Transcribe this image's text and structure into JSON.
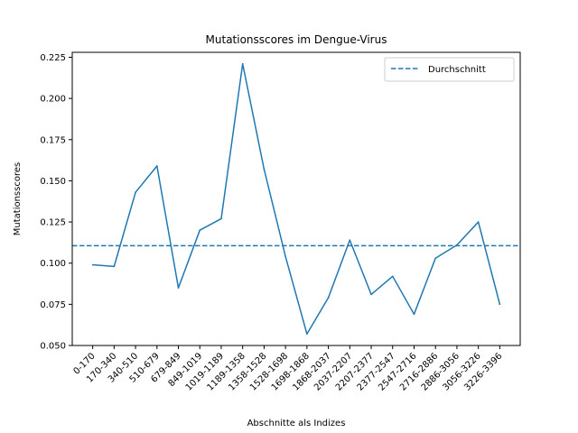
{
  "chart_data": {
    "type": "line",
    "title": "Mutationsscores im Dengue-Virus",
    "xlabel": "Abschnitte als Indizes",
    "ylabel": "Mutationsscores",
    "ylim": [
      0.05,
      0.228
    ],
    "yticks": [
      "0.050",
      "0.075",
      "0.100",
      "0.125",
      "0.150",
      "0.175",
      "0.200",
      "0.225"
    ],
    "grid": false,
    "legend_position": "top-right",
    "categories": [
      "0-170",
      "170-340",
      "340-510",
      "510-679",
      "679-849",
      "849-1019",
      "1019-1189",
      "1189-1358",
      "1358-1528",
      "1528-1698",
      "1698-1868",
      "1868-2037",
      "2037-2207",
      "2207-2377",
      "2377-2547",
      "2547-2716",
      "2716-2886",
      "2886-3056",
      "3056-3226",
      "3226-3396"
    ],
    "series": [
      {
        "values": [
          0.099,
          0.098,
          0.143,
          0.159,
          0.085,
          0.12,
          0.127,
          0.221,
          0.157,
          0.104,
          0.057,
          0.079,
          0.114,
          0.081,
          0.092,
          0.069,
          0.103,
          0.111,
          0.125,
          0.075
        ],
        "color": "#1f77b4"
      }
    ],
    "reference_line": {
      "name": "Durchschnitt",
      "value": 0.1106,
      "style": "dashed",
      "color": "#1f77b4"
    }
  }
}
